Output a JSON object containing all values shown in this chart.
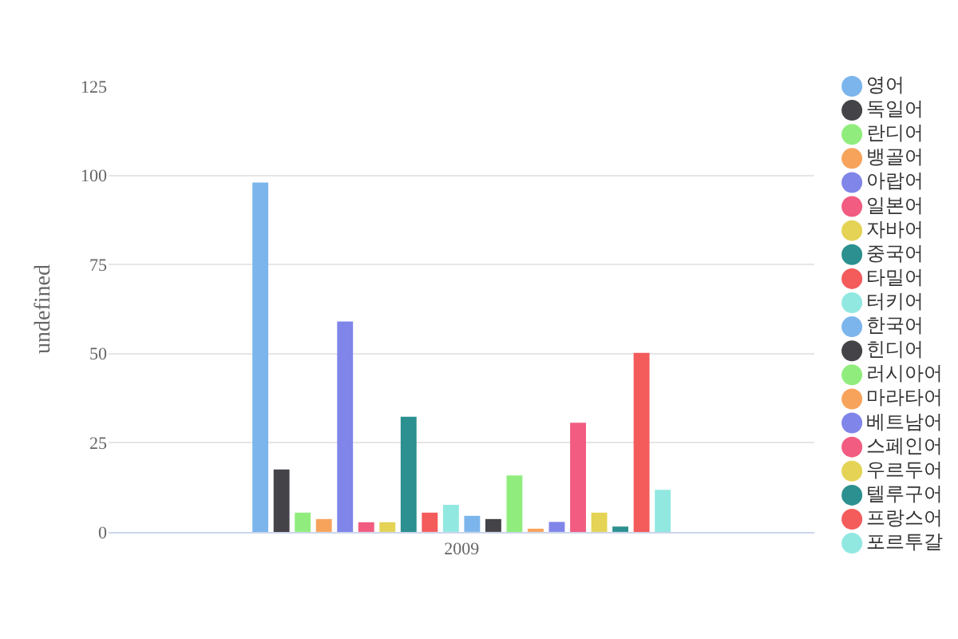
{
  "chart_data": {
    "type": "bar",
    "categories": [
      "2009"
    ],
    "ylabel": "undefined",
    "ylim": [
      0,
      125
    ],
    "yticks": [
      0,
      25,
      50,
      75,
      100,
      125
    ],
    "grid": "y",
    "legend": "right",
    "series": [
      {
        "name": "영어",
        "color": "#7cb5ec",
        "values": [
          98
        ]
      },
      {
        "name": "독일어",
        "color": "#434348",
        "values": [
          17.5
        ]
      },
      {
        "name": "란디어",
        "color": "#90ed7d",
        "values": [
          5.4
        ]
      },
      {
        "name": "뱅골어",
        "color": "#f7a35c",
        "values": [
          3.6
        ]
      },
      {
        "name": "아랍어",
        "color": "#8085e9",
        "values": [
          59
        ]
      },
      {
        "name": "일본어",
        "color": "#f15c80",
        "values": [
          2.7
        ]
      },
      {
        "name": "자바어",
        "color": "#e4d354",
        "values": [
          2.7
        ]
      },
      {
        "name": "중국어",
        "color": "#2b908f",
        "values": [
          32.3
        ]
      },
      {
        "name": "타밀어",
        "color": "#f45b5b",
        "values": [
          5.4
        ]
      },
      {
        "name": "터키어",
        "color": "#91e8e1",
        "values": [
          7.6
        ]
      },
      {
        "name": "한국어",
        "color": "#7cb5ec",
        "values": [
          4.5
        ]
      },
      {
        "name": "힌디어",
        "color": "#434348",
        "values": [
          3.6
        ]
      },
      {
        "name": "러시아어",
        "color": "#90ed7d",
        "values": [
          15.8
        ]
      },
      {
        "name": "마라타어",
        "color": "#f7a35c",
        "values": [
          0.6
        ]
      },
      {
        "name": "베트남어",
        "color": "#8085e9",
        "values": [
          2.8
        ]
      },
      {
        "name": "스페인어",
        "color": "#f15c80",
        "values": [
          30.6
        ]
      },
      {
        "name": "우르두어",
        "color": "#e4d354",
        "values": [
          5.4
        ]
      },
      {
        "name": "텔루구어",
        "color": "#2b908f",
        "values": [
          1.5
        ]
      },
      {
        "name": "프랑스어",
        "color": "#f45b5b",
        "values": [
          50.2
        ]
      },
      {
        "name": "포르투갈",
        "color": "#91e8e1",
        "values": [
          11.8
        ]
      }
    ]
  }
}
